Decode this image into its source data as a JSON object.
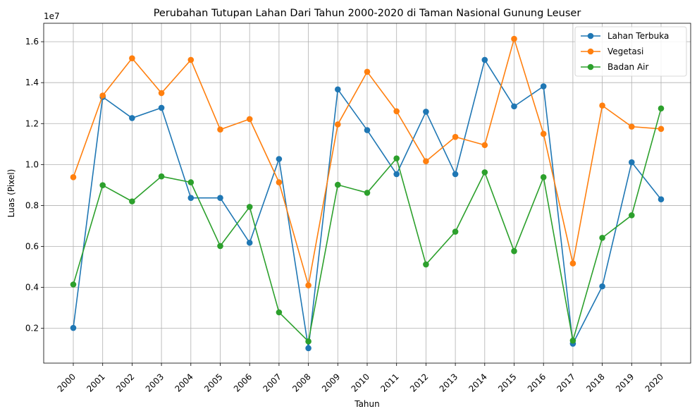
{
  "chart_data": {
    "type": "line",
    "title": "Perubahan Tutupan Lahan Dari Tahun 2000-2020 di Taman Nasional Gunung Leuser",
    "xlabel": "Tahun",
    "ylabel": "Luas (Pixel)",
    "y_offset_text": "1e7",
    "categories": [
      "2000",
      "2001",
      "2002",
      "2003",
      "2004",
      "2005",
      "2006",
      "2007",
      "2008",
      "2009",
      "2010",
      "2011",
      "2012",
      "2013",
      "2014",
      "2015",
      "2016",
      "2017",
      "2018",
      "2019",
      "2020"
    ],
    "yticks": [
      0.2,
      0.4,
      0.6,
      0.8,
      1.0,
      1.2,
      1.4,
      1.6
    ],
    "ylim": [
      0.03,
      1.69
    ],
    "grid": true,
    "legend_position": "top-right",
    "series": [
      {
        "name": "Lahan Terbuka",
        "color": "#1f77b4",
        "values": [
          0.202,
          1.33,
          1.227,
          1.277,
          0.837,
          0.837,
          0.618,
          1.027,
          0.103,
          1.367,
          1.168,
          0.953,
          1.258,
          0.953,
          1.511,
          1.284,
          1.382,
          0.125,
          0.405,
          1.011,
          0.83
        ]
      },
      {
        "name": "Vegetasi",
        "color": "#ff7f0e",
        "values": [
          0.938,
          1.337,
          1.519,
          1.349,
          1.511,
          1.171,
          1.222,
          0.913,
          0.41,
          1.196,
          1.453,
          1.26,
          1.016,
          1.135,
          1.095,
          1.614,
          1.15,
          0.517,
          1.288,
          1.185,
          1.174
        ]
      },
      {
        "name": "Badan Air",
        "color": "#2ca02c",
        "values": [
          0.414,
          0.899,
          0.82,
          0.942,
          0.913,
          0.602,
          0.793,
          0.278,
          0.136,
          0.901,
          0.862,
          1.03,
          0.512,
          0.672,
          0.962,
          0.577,
          0.938,
          0.14,
          0.642,
          0.752,
          1.274
        ]
      }
    ]
  }
}
